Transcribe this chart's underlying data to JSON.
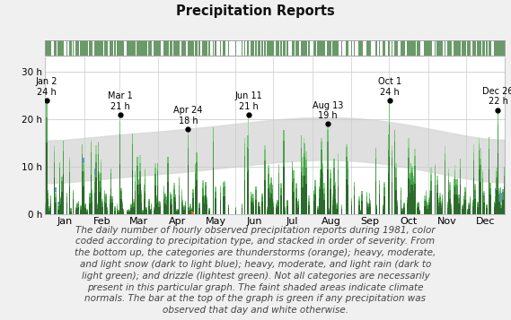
{
  "title": "Precipitation Reports",
  "year": 1981,
  "ylabel_ticks": [
    "0 h",
    "10 h",
    "20 h",
    "30 h"
  ],
  "ytick_vals": [
    0,
    10,
    20,
    30
  ],
  "ylim": [
    0,
    33
  ],
  "months": [
    "Jan",
    "Feb",
    "Mar",
    "Apr",
    "May",
    "Jun",
    "Jul",
    "Aug",
    "Sep",
    "Oct",
    "Nov",
    "Dec"
  ],
  "month_starts": [
    0,
    31,
    59,
    90,
    120,
    151,
    181,
    212,
    243,
    273,
    304,
    334
  ],
  "background_color": "#f0f0f0",
  "plot_bg_color": "#ffffff",
  "bar_green_dark": "#2d6a2d",
  "bar_green_mid": "#4a9e4a",
  "bar_green_light": "#72c472",
  "bar_green_drizzle": "#a0d4a0",
  "bar_orange": "#cc7722",
  "bar_blue_mid": "#6699cc",
  "top_bar_color_precip": "#6a9a6a",
  "top_bar_color_none": "#ffffff",
  "climate_normal_color": "#d8d8d8",
  "grid_color": "#cccccc",
  "annotation_dots": [
    {
      "day_of_year": 2,
      "label": "Jan 2\n24 h",
      "value": 24,
      "ha": "left"
    },
    {
      "day_of_year": 60,
      "label": "Mar 1\n21 h",
      "value": 21,
      "ha": "center"
    },
    {
      "day_of_year": 114,
      "label": "Apr 24\n18 h",
      "value": 18,
      "ha": "center"
    },
    {
      "day_of_year": 162,
      "label": "Jun 11\n21 h",
      "value": 21,
      "ha": "center"
    },
    {
      "day_of_year": 225,
      "label": "Aug 13\n19 h",
      "value": 19,
      "ha": "center"
    },
    {
      "day_of_year": 274,
      "label": "Oct 1\n24 h",
      "value": 24,
      "ha": "center"
    },
    {
      "day_of_year": 360,
      "label": "Dec 26\n22 h",
      "value": 22,
      "ha": "right"
    }
  ],
  "caption_lines": [
    "The daily number of hourly observed precipitation reports during 1981, color",
    "coded according to precipitation type, and stacked in order of severity. From",
    "the bottom up, the categories are thunderstorms (orange); heavy, moderate,",
    "and light snow (dark to light blue); heavy, moderate, and light rain (dark to",
    "light green); and drizzle (lightest green). Not all categories are necessarily",
    "present in this particular graph. The faint shaded areas indicate climate",
    "normals. The bar at the top of the graph is green if any precipitation was",
    "observed that day and white otherwise."
  ],
  "caption_fontsize": 7.5
}
